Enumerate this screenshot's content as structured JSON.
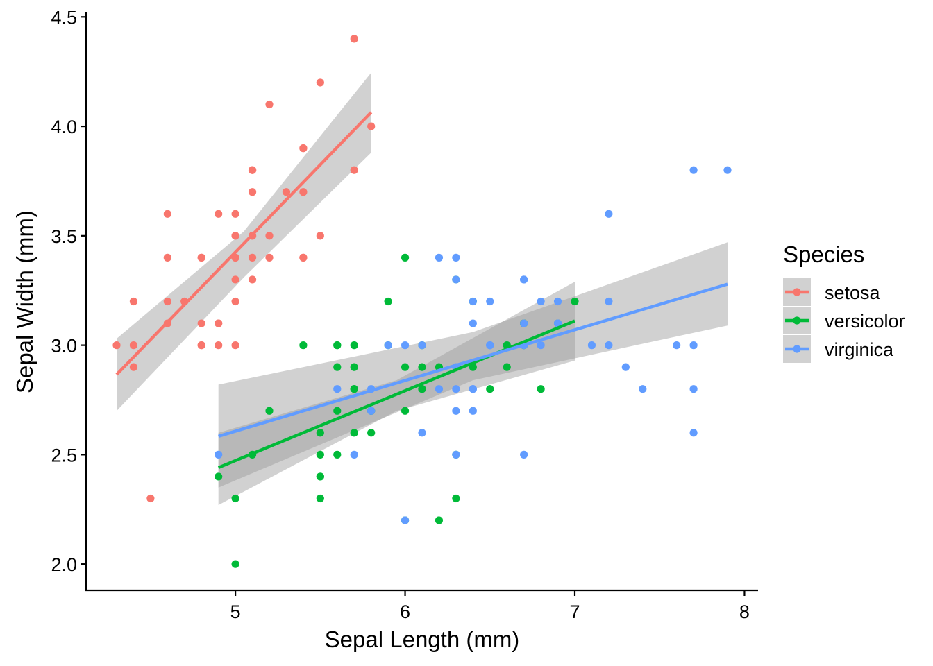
{
  "chart_data": {
    "type": "scatter",
    "title": "",
    "xlabel": "Sepal Length (mm)",
    "ylabel": "Sepal Width (mm)",
    "xlim": [
      4.12,
      8.08
    ],
    "ylim": [
      1.88,
      4.52
    ],
    "x_ticks": [
      5,
      6,
      7,
      8
    ],
    "x_tick_labels": [
      "5",
      "6",
      "7",
      "8"
    ],
    "y_ticks": [
      2.0,
      2.5,
      3.0,
      3.5,
      4.0,
      4.5
    ],
    "y_tick_labels": [
      "2.0",
      "2.5",
      "3.0",
      "3.5",
      "4.0",
      "4.5"
    ],
    "grid": false,
    "legend": {
      "title": "Species",
      "position": "right"
    },
    "series": [
      {
        "name": "setosa",
        "color": "#F8766D",
        "x": [
          5.1,
          4.9,
          4.7,
          4.6,
          5.0,
          5.4,
          4.6,
          5.0,
          4.4,
          4.9,
          5.4,
          4.8,
          4.8,
          4.3,
          5.8,
          5.7,
          5.4,
          5.1,
          5.7,
          5.1,
          5.4,
          5.1,
          4.6,
          5.1,
          4.8,
          5.0,
          5.0,
          5.2,
          5.2,
          4.7,
          4.8,
          5.4,
          5.2,
          5.5,
          4.9,
          5.0,
          5.5,
          4.9,
          4.4,
          5.1,
          5.0,
          4.5,
          4.4,
          5.0,
          5.1,
          4.8,
          5.1,
          4.6,
          5.3,
          5.0
        ],
        "y": [
          3.5,
          3.0,
          3.2,
          3.1,
          3.6,
          3.9,
          3.4,
          3.4,
          2.9,
          3.1,
          3.7,
          3.4,
          3.0,
          3.0,
          4.0,
          4.4,
          3.9,
          3.5,
          3.8,
          3.8,
          3.4,
          3.7,
          3.6,
          3.3,
          3.4,
          3.0,
          3.4,
          3.5,
          3.4,
          3.2,
          3.1,
          3.4,
          4.1,
          4.2,
          3.1,
          3.2,
          3.5,
          3.6,
          3.0,
          3.4,
          3.5,
          2.3,
          3.2,
          3.5,
          3.8,
          3.0,
          3.8,
          3.2,
          3.7,
          3.3
        ],
        "fit": {
          "x": [
            4.3,
            5.8
          ],
          "y": [
            2.866,
            4.064
          ]
        },
        "band": {
          "x": [
            4.3,
            5.05,
            5.8
          ],
          "upper": [
            3.03,
            3.52,
            4.245
          ],
          "lower": [
            2.7,
            3.31,
            3.88
          ]
        }
      },
      {
        "name": "versicolor",
        "color": "#00BA38",
        "x": [
          7.0,
          6.4,
          6.9,
          5.5,
          6.5,
          5.7,
          6.3,
          4.9,
          6.6,
          5.2,
          5.0,
          5.9,
          6.0,
          6.1,
          5.6,
          6.7,
          5.6,
          5.8,
          6.2,
          5.6,
          5.9,
          6.1,
          6.3,
          6.1,
          6.4,
          6.6,
          6.8,
          6.7,
          6.0,
          5.7,
          5.5,
          5.5,
          5.8,
          6.0,
          5.4,
          6.0,
          6.7,
          6.3,
          5.6,
          5.5,
          5.5,
          6.1,
          5.8,
          5.0,
          5.6,
          5.7,
          5.7,
          6.2,
          5.1,
          5.7
        ],
        "y": [
          3.2,
          3.2,
          3.1,
          2.3,
          2.8,
          2.8,
          3.3,
          2.4,
          2.9,
          2.7,
          2.0,
          3.0,
          2.2,
          2.9,
          2.9,
          3.1,
          3.0,
          2.7,
          2.2,
          2.5,
          3.2,
          2.8,
          2.5,
          2.8,
          2.9,
          3.0,
          2.8,
          3.0,
          2.9,
          2.6,
          2.4,
          2.4,
          2.7,
          2.7,
          3.0,
          3.4,
          3.1,
          2.3,
          3.0,
          2.5,
          2.6,
          3.0,
          2.6,
          2.3,
          2.7,
          3.0,
          2.9,
          2.9,
          2.5,
          2.8
        ],
        "fit": {
          "x": [
            4.9,
            7.0
          ],
          "y": [
            2.441,
            3.111
          ]
        },
        "band": {
          "x": [
            4.9,
            5.95,
            7.0
          ],
          "upper": [
            2.6,
            2.84,
            3.29
          ],
          "lower": [
            2.27,
            2.7,
            2.93
          ]
        }
      },
      {
        "name": "virginica",
        "color": "#619CFF",
        "x": [
          6.3,
          5.8,
          7.1,
          6.3,
          6.5,
          7.6,
          4.9,
          7.3,
          6.7,
          7.2,
          6.5,
          6.4,
          6.8,
          5.7,
          5.8,
          6.4,
          6.5,
          7.7,
          7.7,
          6.0,
          6.9,
          5.6,
          7.7,
          6.3,
          6.7,
          7.2,
          6.2,
          6.1,
          6.4,
          7.2,
          7.4,
          7.9,
          6.4,
          6.3,
          6.1,
          7.7,
          6.3,
          6.4,
          6.0,
          6.9,
          6.7,
          6.9,
          5.8,
          6.8,
          6.7,
          6.7,
          6.3,
          6.5,
          6.2,
          5.9
        ],
        "y": [
          3.3,
          2.7,
          3.0,
          2.9,
          3.0,
          3.0,
          2.5,
          2.9,
          2.5,
          3.6,
          3.2,
          2.7,
          3.0,
          2.5,
          2.8,
          3.2,
          3.0,
          3.8,
          2.6,
          2.2,
          3.2,
          2.8,
          2.8,
          2.7,
          3.3,
          3.2,
          2.8,
          3.0,
          2.8,
          3.0,
          2.8,
          3.8,
          2.8,
          2.8,
          2.6,
          3.0,
          3.4,
          3.1,
          3.0,
          3.1,
          3.1,
          3.1,
          2.7,
          3.2,
          3.3,
          3.0,
          2.5,
          3.0,
          3.4,
          3.0
        ],
        "fit": {
          "x": [
            4.9,
            7.9
          ],
          "y": [
            2.584,
            3.279
          ]
        },
        "band": {
          "x": [
            4.9,
            6.4,
            7.9
          ],
          "upper": [
            2.82,
            3.06,
            3.47
          ],
          "lower": [
            2.35,
            2.84,
            3.09
          ]
        }
      }
    ]
  }
}
